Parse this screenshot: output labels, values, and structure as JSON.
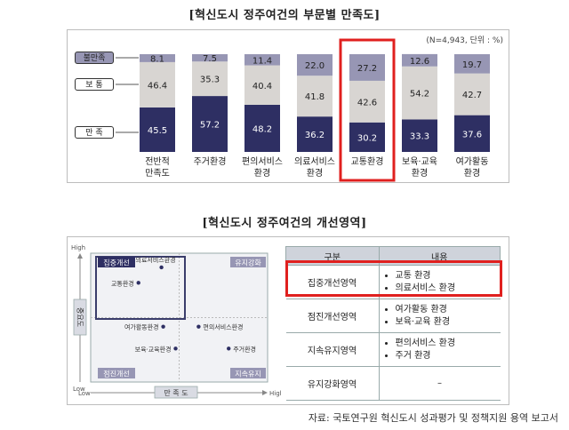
{
  "title1": "[혁신도시 정주여건의 부문별 만족도]",
  "title2": "[혁신도시 정주여건의 개선영역]",
  "chart_data": [
    {
      "type": "bar",
      "stacked": true,
      "title": "혁신도시 정주여건의 부문별 만족도",
      "unit_note": "(N=4,943, 단위 : %)",
      "categories": [
        "전반적\n만족도",
        "주거환경",
        "편의서비스\n환경",
        "의료서비스\n환경",
        "교통환경",
        "보육·교육\n환경",
        "여가활동\n환경"
      ],
      "series": [
        {
          "name": "만 족",
          "color": "#2e2f63",
          "values": [
            45.5,
            57.2,
            48.2,
            36.2,
            30.2,
            33.3,
            37.6
          ]
        },
        {
          "name": "보 통",
          "color": "#d8d5d2",
          "values": [
            46.4,
            35.3,
            40.4,
            41.8,
            42.6,
            54.2,
            42.7
          ]
        },
        {
          "name": "불만족",
          "color": "#9796b4",
          "values": [
            8.1,
            7.5,
            11.4,
            22.0,
            27.2,
            12.6,
            19.7
          ]
        }
      ],
      "labels": [
        [
          "45.5",
          "57.2",
          "48.2",
          "36.2",
          "30.2",
          "33.3",
          "37.6"
        ],
        [
          "46.4",
          "35.3",
          "40.4",
          "41.8",
          "42.6",
          "54.2",
          "42.7"
        ],
        [
          "8.1",
          "7.5",
          "11.4",
          "22.0",
          "27.2",
          "12.6",
          "19.7"
        ]
      ],
      "highlight_category": "교통환경",
      "ylim": [
        0,
        100
      ]
    },
    {
      "type": "scatter",
      "title": "혁신도시 정주여건의 개선영역",
      "xlabel": "만 족 도",
      "ylabel": "중요도",
      "x_low": "Low",
      "x_high": "High",
      "y_low": "Low",
      "y_high": "High",
      "quadrants": [
        "집중개선",
        "유지강화",
        "점진개선",
        "지속유지"
      ],
      "xlim": [
        0,
        10
      ],
      "ylim": [
        0,
        10
      ],
      "points": [
        {
          "label": "의료서비스환경",
          "x": 4.0,
          "y": 8.9
        },
        {
          "label": "교통환경",
          "x": 2.7,
          "y": 7.7
        },
        {
          "label": "편의서비스환경",
          "x": 6.1,
          "y": 4.3
        },
        {
          "label": "여가활동환경",
          "x": 4.1,
          "y": 4.3
        },
        {
          "label": "보육·교육환경",
          "x": 4.8,
          "y": 2.6
        },
        {
          "label": "주거환경",
          "x": 7.8,
          "y": 2.6
        }
      ]
    }
  ],
  "table": {
    "headers": [
      "구분",
      "내용"
    ],
    "rows": [
      {
        "area": "집중개선영역",
        "items": [
          "교통 환경",
          "의료서비스 환경"
        ],
        "highlight": true
      },
      {
        "area": "점진개선영역",
        "items": [
          "여가활동 환경",
          "보육·교육 환경"
        ]
      },
      {
        "area": "지속유지영역",
        "items": [
          "편의서비스 환경",
          "주거 환경"
        ]
      },
      {
        "area": "유지강화영역",
        "items": [
          "–"
        ]
      }
    ]
  },
  "colors": {
    "highlight": "#e0201f",
    "navy": "#2e2f63",
    "gray": "#d8d5d2",
    "lavender": "#9796b4"
  },
  "source": "자료: 국토연구원 혁신도시 성과평가 및 정책지원 용역 보고서"
}
